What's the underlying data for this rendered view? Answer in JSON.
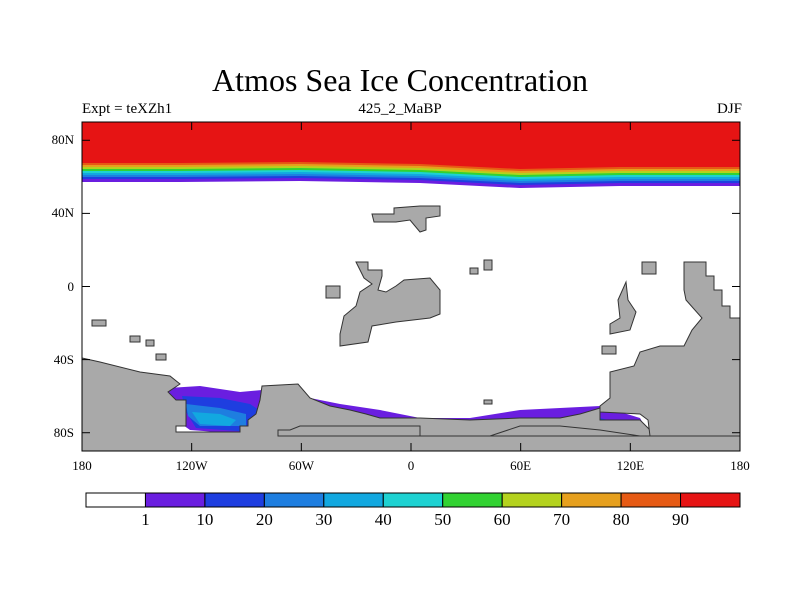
{
  "title": "Atmos Sea Ice Concentration",
  "subtitle_left": "Expt = teXZh1",
  "subtitle_center": "425_2_MaBP",
  "subtitle_right": "DJF",
  "chart_data": {
    "type": "heatmap",
    "title": "Atmos Sea Ice Concentration",
    "projection": "cylindrical equidistant",
    "xlim": [
      -180,
      180
    ],
    "ylim": [
      -90,
      90
    ],
    "x_ticks": [
      {
        "value": -180,
        "label": "180"
      },
      {
        "value": -120,
        "label": "120W"
      },
      {
        "value": -60,
        "label": "60W"
      },
      {
        "value": 0,
        "label": "0"
      },
      {
        "value": 60,
        "label": "60E"
      },
      {
        "value": 120,
        "label": "120E"
      },
      {
        "value": 180,
        "label": "180"
      }
    ],
    "y_ticks": [
      {
        "value": 80,
        "label": "80N"
      },
      {
        "value": 40,
        "label": "40N"
      },
      {
        "value": 0,
        "label": "0"
      },
      {
        "value": -40,
        "label": "40S"
      },
      {
        "value": -80,
        "label": "80S"
      }
    ],
    "colorbar": {
      "levels": [
        "1",
        "10",
        "20",
        "30",
        "40",
        "50",
        "60",
        "70",
        "80",
        "90"
      ],
      "colors": [
        "#ffffff",
        "#6a1ee0",
        "#1e3ee0",
        "#1e7ee0",
        "#12a8e0",
        "#1ed2d2",
        "#32d232",
        "#b4d21e",
        "#e6a01e",
        "#e65a14",
        "#e61414"
      ]
    },
    "land_color": "#a9a9a9"
  }
}
